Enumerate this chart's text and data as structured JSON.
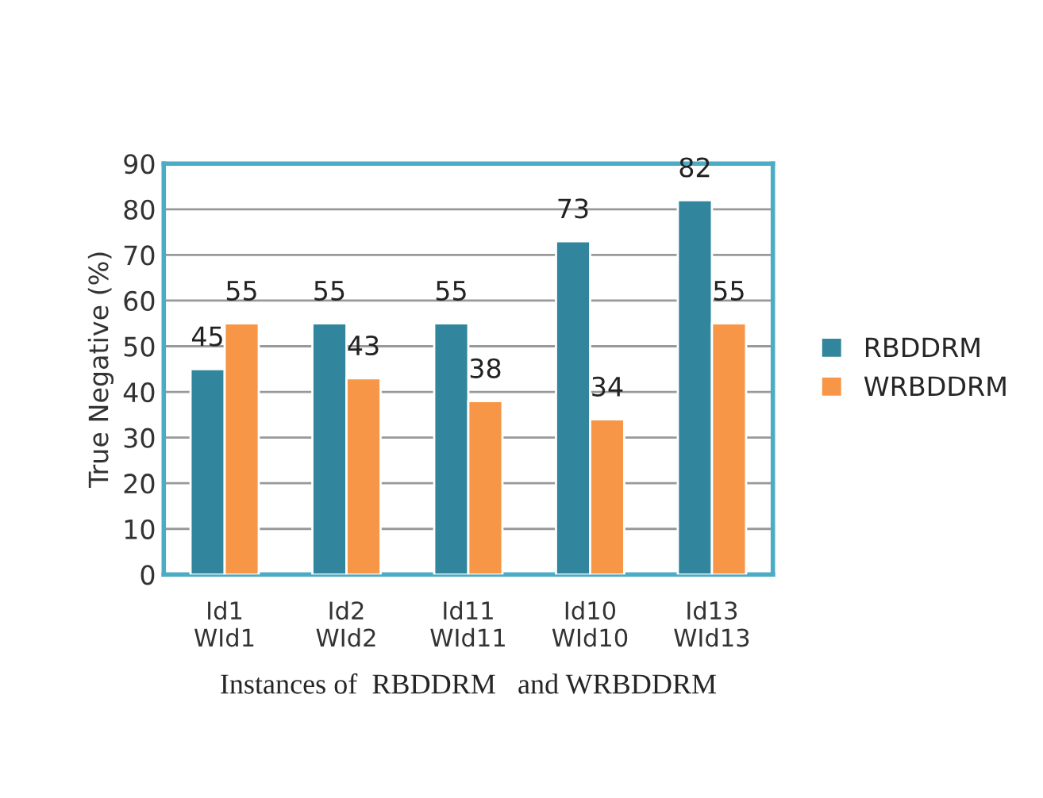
{
  "chart_data": {
    "type": "bar",
    "xlabel": "Instances of  RBDDRM   and WRBDDRM",
    "ylabel": "True Negative (%)",
    "categories": [
      "Id1\nWId1",
      "Id2\nWId2",
      "Id11\nWId11",
      "Id10\nWId10",
      "Id13\nWId13"
    ],
    "series": [
      {
        "name": "RBDDRM",
        "color": "#31859c",
        "values": [
          45,
          55,
          55,
          73,
          82
        ]
      },
      {
        "name": "WRBDDRM",
        "color": "#f79646",
        "values": [
          55,
          43,
          38,
          34,
          55
        ]
      }
    ],
    "ylim": [
      0,
      90
    ],
    "yticks": [
      0,
      10,
      20,
      30,
      40,
      50,
      60,
      70,
      80,
      90
    ],
    "grid": "y",
    "legend": "right",
    "data_labels": true
  }
}
